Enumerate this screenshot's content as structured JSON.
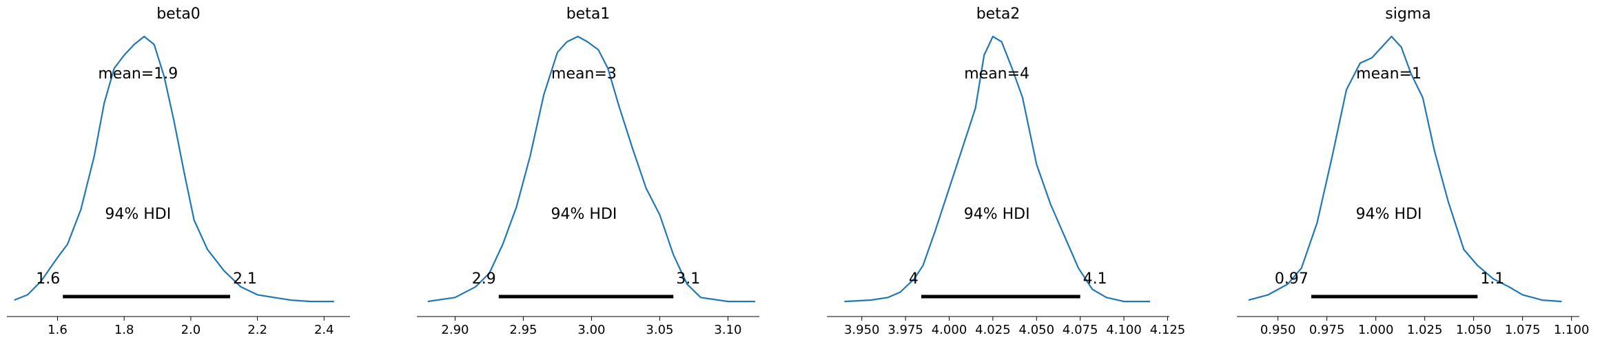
{
  "chart_data": [
    {
      "type": "area",
      "title": "beta0",
      "mean_label": "mean=1.9",
      "hdi_label": "94% HDI",
      "hdi": [
        1.616,
        2.118
      ],
      "hdi_low_label": "1.6",
      "hdi_high_label": "2.1",
      "xlim": [
        1.448,
        2.478
      ],
      "ticks": [
        1.6,
        1.8,
        2.0,
        2.2,
        2.4
      ],
      "tick_labels": [
        "1.6",
        "1.8",
        "2.0",
        "2.2",
        "2.4"
      ],
      "color": "#1f77b4",
      "x": [
        1.47,
        1.51,
        1.55,
        1.6,
        1.63,
        1.67,
        1.71,
        1.74,
        1.77,
        1.8,
        1.83,
        1.86,
        1.89,
        1.92,
        1.95,
        1.98,
        2.01,
        2.05,
        2.1,
        2.15,
        2.2,
        2.25,
        2.3,
        2.36,
        2.43
      ],
      "y": [
        0.01,
        0.03,
        0.08,
        0.17,
        0.22,
        0.35,
        0.55,
        0.75,
        0.88,
        0.93,
        0.97,
        1.0,
        0.97,
        0.85,
        0.68,
        0.49,
        0.31,
        0.2,
        0.12,
        0.06,
        0.03,
        0.02,
        0.01,
        0.005,
        0.005
      ]
    },
    {
      "type": "area",
      "title": "beta1",
      "mean_label": "mean=3",
      "hdi_label": "94% HDI",
      "hdi": [
        2.932,
        3.06
      ],
      "hdi_low_label": "2.9",
      "hdi_high_label": "3.1",
      "xlim": [
        2.872,
        3.123
      ],
      "ticks": [
        2.9,
        2.95,
        3.0,
        3.05,
        3.1
      ],
      "tick_labels": [
        "2.90",
        "2.95",
        "3.00",
        "3.05",
        "3.10"
      ],
      "color": "#1f77b4",
      "x": [
        2.88,
        2.9,
        2.915,
        2.925,
        2.935,
        2.945,
        2.955,
        2.965,
        2.975,
        2.982,
        2.99,
        2.997,
        3.005,
        3.012,
        3.02,
        3.03,
        3.04,
        3.05,
        3.06,
        3.07,
        3.08,
        3.1,
        3.12
      ],
      "y": [
        0.005,
        0.02,
        0.06,
        0.11,
        0.22,
        0.36,
        0.55,
        0.78,
        0.94,
        0.98,
        1.0,
        0.98,
        0.95,
        0.88,
        0.74,
        0.58,
        0.43,
        0.33,
        0.18,
        0.07,
        0.02,
        0.005,
        0.005
      ]
    },
    {
      "type": "area",
      "title": "beta2",
      "mean_label": "mean=4",
      "hdi_label": "94% HDI",
      "hdi": [
        3.984,
        4.075
      ],
      "hdi_low_label": "4",
      "hdi_high_label": "4.1",
      "xlim": [
        3.93,
        4.126
      ],
      "ticks": [
        3.95,
        3.975,
        4.0,
        4.025,
        4.05,
        4.075,
        4.1,
        4.125
      ],
      "tick_labels": [
        "3.950",
        "3.975",
        "4.000",
        "4.025",
        "4.050",
        "4.075",
        "4.100",
        "4.125"
      ],
      "color": "#1f77b4",
      "x": [
        3.94,
        3.955,
        3.965,
        3.972,
        3.98,
        3.985,
        3.992,
        4.0,
        4.008,
        4.015,
        4.02,
        4.025,
        4.03,
        4.036,
        4.042,
        4.05,
        4.058,
        4.066,
        4.074,
        4.082,
        4.09,
        4.1,
        4.115
      ],
      "y": [
        0.005,
        0.01,
        0.02,
        0.04,
        0.09,
        0.14,
        0.27,
        0.43,
        0.59,
        0.73,
        0.93,
        1.0,
        0.98,
        0.88,
        0.77,
        0.52,
        0.37,
        0.25,
        0.13,
        0.05,
        0.02,
        0.005,
        0.005
      ]
    },
    {
      "type": "area",
      "title": "sigma",
      "mean_label": "mean=1",
      "hdi_label": "94% HDI",
      "hdi": [
        0.967,
        1.052
      ],
      "hdi_low_label": "0.97",
      "hdi_high_label": "1.1",
      "xlim": [
        0.929,
        1.104
      ],
      "ticks": [
        0.95,
        0.975,
        1.0,
        1.025,
        1.05,
        1.075,
        1.1
      ],
      "tick_labels": [
        "0.950",
        "0.975",
        "1.000",
        "1.025",
        "1.050",
        "1.075",
        "1.100"
      ],
      "color": "#1f77b4",
      "x": [
        0.935,
        0.945,
        0.955,
        0.962,
        0.97,
        0.978,
        0.985,
        0.992,
        0.998,
        1.003,
        1.008,
        1.013,
        1.018,
        1.024,
        1.03,
        1.037,
        1.045,
        1.052,
        1.06,
        1.068,
        1.075,
        1.085,
        1.095
      ],
      "y": [
        0.01,
        0.03,
        0.07,
        0.13,
        0.3,
        0.56,
        0.8,
        0.9,
        0.92,
        0.96,
        1.0,
        0.96,
        0.86,
        0.77,
        0.57,
        0.38,
        0.2,
        0.14,
        0.09,
        0.06,
        0.03,
        0.01,
        0.005
      ]
    }
  ]
}
